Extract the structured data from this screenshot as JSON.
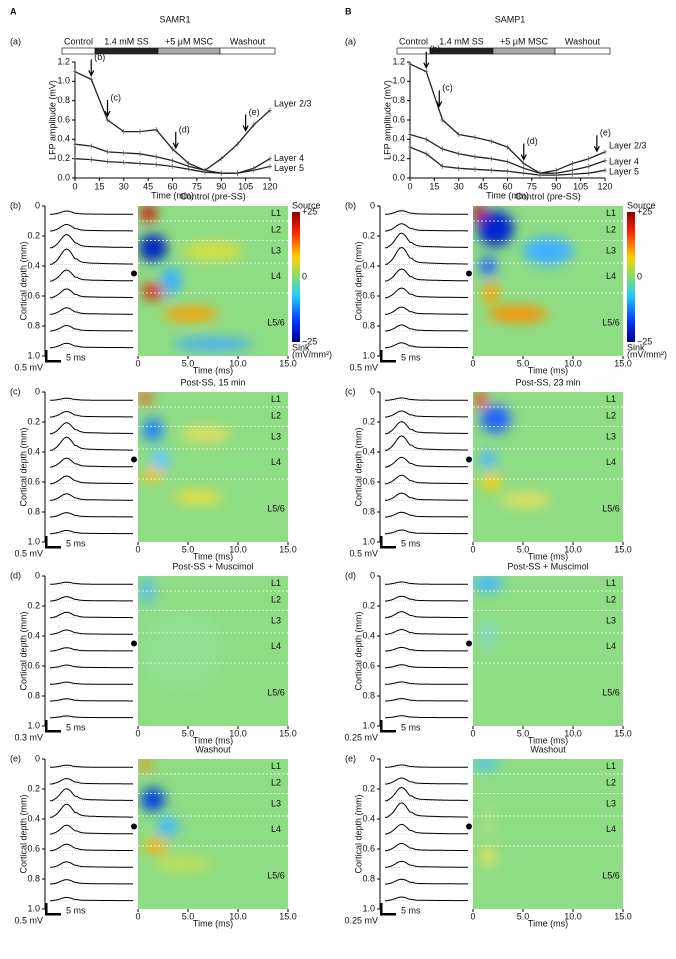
{
  "columns": [
    {
      "letter": "A",
      "title": "SAMR1",
      "timecourse": {
        "label": "(a)",
        "conditions": [
          "Control",
          "1.4 mM SS",
          "+5 μM MSC",
          "Washout"
        ],
        "ylabel": "LFP amplitude (mV)",
        "xlabel": "Time (min)",
        "xlim": [
          0,
          120
        ],
        "xticks": [
          0,
          15,
          30,
          45,
          60,
          75,
          90,
          105,
          120
        ],
        "ylim": [
          0,
          1.2
        ],
        "yticks": [
          {
            "value": 0,
            "label": "0.0"
          },
          {
            "value": 0.2,
            "label": "0.2"
          },
          {
            "value": 0.4,
            "label": "0.4"
          },
          {
            "value": 0.6,
            "label": "0.6"
          },
          {
            "value": 0.8,
            "label": "0.8"
          },
          {
            "value": 1.0,
            "label": "1.0"
          },
          {
            "value": 1.2,
            "label": "1.2"
          }
        ],
        "x": [
          0,
          10,
          20,
          30,
          40,
          50,
          60,
          70,
          80,
          90,
          100,
          110,
          120
        ],
        "series": [
          {
            "name": "Layer 2/3",
            "values": [
              1.1,
              1.02,
              0.6,
              0.48,
              0.48,
              0.5,
              0.3,
              0.15,
              0.08,
              0.2,
              0.35,
              0.55,
              0.7
            ]
          },
          {
            "name": "Layer 4",
            "values": [
              0.35,
              0.33,
              0.27,
              0.26,
              0.25,
              0.22,
              0.18,
              0.12,
              0.08,
              0.05,
              0.05,
              0.1,
              0.2
            ]
          },
          {
            "name": "Layer 5",
            "values": [
              0.2,
              0.19,
              0.17,
              0.16,
              0.15,
              0.14,
              0.12,
              0.09,
              0.06,
              0.05,
              0.05,
              0.08,
              0.12
            ]
          }
        ],
        "arrows": [
          {
            "label": "(b)",
            "x": 10
          },
          {
            "label": "(c)",
            "x": 20
          },
          {
            "label": "(d)",
            "x": 62
          },
          {
            "label": "(e)",
            "x": 105
          }
        ]
      },
      "csd": [
        {
          "label": "(b)",
          "title": "Control (pre-SS)",
          "scale": "0.5 mV"
        },
        {
          "label": "(c)",
          "title": "Post-SS, 15 min",
          "scale": "0.5 mV"
        },
        {
          "label": "(d)",
          "title": "Post-SS + Muscimol",
          "scale": "0.3 mV"
        },
        {
          "label": "(e)",
          "title": "Washout",
          "scale": "0.5 mV"
        }
      ]
    },
    {
      "letter": "B",
      "title": "SAMP1",
      "timecourse": {
        "label": "(a)",
        "conditions": [
          "Control",
          "1.4 mM SS",
          "+5 μM MSC",
          "Washout"
        ],
        "ylabel": "LFP amplitude (mV)",
        "xlabel": "Time (min)",
        "xlim": [
          0,
          120
        ],
        "xticks": [
          0,
          15,
          30,
          45,
          60,
          75,
          90,
          105,
          120
        ],
        "ylim": [
          0,
          1.2
        ],
        "yticks": [
          {
            "value": 0,
            "label": "0.0"
          },
          {
            "value": 0.2,
            "label": "0.2"
          },
          {
            "value": 0.4,
            "label": "0.4"
          },
          {
            "value": 0.6,
            "label": "0.6"
          },
          {
            "value": 0.8,
            "label": "0.8"
          },
          {
            "value": 1.0,
            "label": "1.0"
          },
          {
            "value": 1.2,
            "label": "1.2"
          }
        ],
        "x": [
          0,
          10,
          20,
          30,
          40,
          50,
          60,
          70,
          80,
          90,
          100,
          110,
          120
        ],
        "series": [
          {
            "name": "Layer 2/3",
            "values": [
              1.18,
              1.1,
              0.6,
              0.45,
              0.42,
              0.38,
              0.32,
              0.15,
              0.05,
              0.08,
              0.15,
              0.2,
              0.27
            ]
          },
          {
            "name": "Layer 4",
            "values": [
              0.45,
              0.4,
              0.3,
              0.25,
              0.22,
              0.2,
              0.17,
              0.1,
              0.05,
              0.05,
              0.08,
              0.12,
              0.18
            ]
          },
          {
            "name": "Layer 5",
            "values": [
              0.32,
              0.25,
              0.12,
              0.1,
              0.09,
              0.08,
              0.07,
              0.05,
              0.03,
              0.03,
              0.04,
              0.05,
              0.08
            ]
          }
        ],
        "arrows": [
          {
            "label": "(b)",
            "x": 10
          },
          {
            "label": "(c)",
            "x": 18
          },
          {
            "label": "(d)",
            "x": 70
          },
          {
            "label": "(e)",
            "x": 115
          }
        ]
      },
      "csd": [
        {
          "label": "(b)",
          "title": "Control (pre-SS)",
          "scale": "0.5 mV"
        },
        {
          "label": "(c)",
          "title": "Post-SS, 23 min",
          "scale": "0.5 mV"
        },
        {
          "label": "(d)",
          "title": "Post-SS + Muscimol",
          "scale": "0.25 mV"
        },
        {
          "label": "(e)",
          "title": "Washout",
          "scale": "0.25 mV"
        }
      ]
    }
  ],
  "csd_axes": {
    "ylabel": "Cortical depth (mm)",
    "yticks": [
      "0",
      "0.2",
      "0.4",
      "0.6",
      "0.8",
      "1.0"
    ],
    "xlabel": "Time (ms)",
    "xticks": [
      "0",
      "5.0",
      "10.0",
      "15.0"
    ],
    "time_scale": "5 ms",
    "layers": [
      "L1",
      "L2",
      "L3",
      "L4",
      "L5/6"
    ],
    "colorbar": {
      "source": "Source",
      "top": "+25",
      "mid": "0",
      "bottom": "−25",
      "sink": "Sink",
      "unit": "(mV/mm²)"
    }
  }
}
